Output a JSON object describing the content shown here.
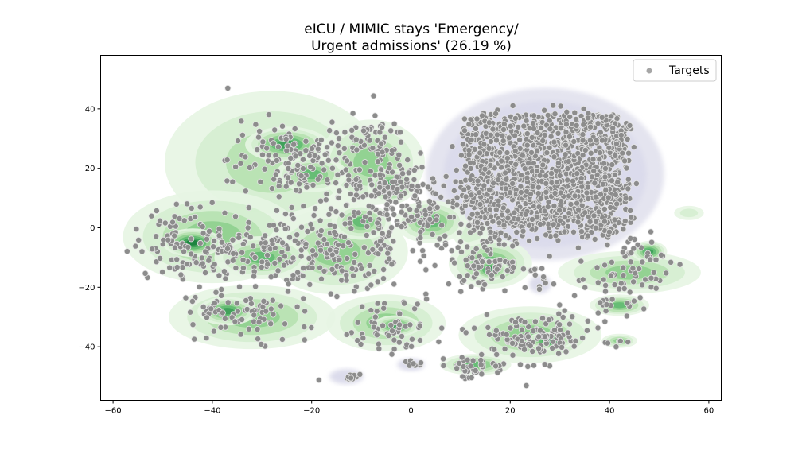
{
  "chart_data": {
    "type": "scatter",
    "title_line1": "eICU / MIMIC stays 'Emergency/",
    "title_line2": "Urgent admissions' (26.19 %)",
    "xlabel": "",
    "ylabel": "",
    "xlim": [
      -62.5,
      62.5
    ],
    "ylim": [
      -58,
      58
    ],
    "x_ticks": [
      -60,
      -40,
      -20,
      0,
      20,
      40,
      60
    ],
    "y_ticks": [
      -40,
      -20,
      0,
      20,
      40
    ],
    "grid": false,
    "legend": {
      "position": "top-right",
      "entries": [
        "Targets"
      ]
    },
    "colors": {
      "points_fill": "#8c8c8c",
      "points_edge": "#e6e6e6",
      "density_palette": [
        "#e7f5e3",
        "#c9eac2",
        "#a2d99b",
        "#73c476",
        "#41ab5d",
        "#238b45",
        "#006d2c"
      ],
      "source_density": [
        "#e4e4ef",
        "#d6d6ea"
      ]
    },
    "series": [
      {
        "name": "Targets",
        "clusters": [
          {
            "cx": 27,
            "cy": 18,
            "sx": 9,
            "sy": 12,
            "n": 1400,
            "shape": "box",
            "hx": 16,
            "hy": 20
          },
          {
            "cx": -25,
            "cy": 22,
            "sx": 6,
            "sy": 7,
            "n": 140
          },
          {
            "cx": -9,
            "cy": 30,
            "sx": 4,
            "sy": 4,
            "n": 60
          },
          {
            "cx": -5,
            "cy": 15,
            "sx": 4,
            "sy": 4,
            "n": 90
          },
          {
            "cx": -44,
            "cy": -5,
            "sx": 6,
            "sy": 6,
            "n": 110
          },
          {
            "cx": -30,
            "cy": -8,
            "sx": 6,
            "sy": 6,
            "n": 100
          },
          {
            "cx": -15,
            "cy": -10,
            "sx": 7,
            "sy": 7,
            "n": 100
          },
          {
            "cx": -8,
            "cy": 2,
            "sx": 7,
            "sy": 7,
            "n": 100
          },
          {
            "cx": 4,
            "cy": 2,
            "sx": 5,
            "sy": 7,
            "n": 80
          },
          {
            "cx": -35,
            "cy": -30,
            "sx": 6,
            "sy": 5,
            "n": 70
          },
          {
            "cx": -5,
            "cy": -32,
            "sx": 6,
            "sy": 5,
            "n": 60
          },
          {
            "cx": 16,
            "cy": -12,
            "sx": 4,
            "sy": 4,
            "n": 90
          },
          {
            "cx": 25,
            "cy": -37,
            "sx": 6,
            "sy": 4,
            "n": 120
          },
          {
            "cx": 13,
            "cy": -47,
            "sx": 4,
            "sy": 2,
            "n": 40
          },
          {
            "cx": 43,
            "cy": -17,
            "sx": 5,
            "sy": 3,
            "n": 40
          },
          {
            "cx": 47,
            "cy": -8,
            "sx": 3,
            "sy": 3,
            "n": 25
          },
          {
            "cx": 42,
            "cy": -26,
            "sx": 4,
            "sy": 2,
            "n": 20
          },
          {
            "cx": -13,
            "cy": -50,
            "sx": 2,
            "sy": 1,
            "n": 14
          },
          {
            "cx": 42,
            "cy": -38,
            "sx": 1.5,
            "sy": 1,
            "n": 5
          },
          {
            "cx": 0,
            "cy": -46,
            "sx": 1.5,
            "sy": 1,
            "n": 8
          },
          {
            "cx": 26,
            "cy": -18,
            "sx": 1,
            "sy": 2,
            "n": 6
          }
        ]
      }
    ],
    "density_regions": [
      {
        "cx": -28,
        "cy": 22,
        "rx": 18,
        "ry": 20,
        "level": 2
      },
      {
        "cx": -25,
        "cy": 28,
        "rx": 7,
        "ry": 5,
        "level": 5
      },
      {
        "cx": -20,
        "cy": 18,
        "rx": 6,
        "ry": 5,
        "level": 4
      },
      {
        "cx": -8,
        "cy": 22,
        "rx": 9,
        "ry": 12,
        "level": 3
      },
      {
        "cx": -4,
        "cy": 14,
        "rx": 4,
        "ry": 5,
        "level": 5
      },
      {
        "cx": -40,
        "cy": -3,
        "rx": 15,
        "ry": 13,
        "level": 3
      },
      {
        "cx": -44,
        "cy": -5,
        "rx": 5,
        "ry": 4,
        "level": 6
      },
      {
        "cx": -30,
        "cy": -10,
        "rx": 8,
        "ry": 6,
        "level": 4
      },
      {
        "cx": -15,
        "cy": -8,
        "rx": 12,
        "ry": 12,
        "level": 3
      },
      {
        "cx": -10,
        "cy": 2,
        "rx": 5,
        "ry": 5,
        "level": 4
      },
      {
        "cx": 4,
        "cy": 2,
        "rx": 6,
        "ry": 6,
        "level": 4
      },
      {
        "cx": -32,
        "cy": -30,
        "rx": 14,
        "ry": 9,
        "level": 3
      },
      {
        "cx": -37,
        "cy": -28,
        "rx": 5,
        "ry": 4,
        "level": 5
      },
      {
        "cx": -5,
        "cy": -32,
        "rx": 10,
        "ry": 8,
        "level": 3
      },
      {
        "cx": -3,
        "cy": -33,
        "rx": 4,
        "ry": 3,
        "level": 5
      },
      {
        "cx": 16,
        "cy": -12,
        "rx": 7,
        "ry": 7,
        "level": 4
      },
      {
        "cx": 16,
        "cy": -14,
        "rx": 3,
        "ry": 3,
        "level": 6
      },
      {
        "cx": 24,
        "cy": -36,
        "rx": 12,
        "ry": 8,
        "level": 3
      },
      {
        "cx": 28,
        "cy": -38,
        "rx": 4,
        "ry": 2.5,
        "level": 6
      },
      {
        "cx": 13,
        "cy": -46,
        "rx": 6,
        "ry": 3,
        "level": 4
      },
      {
        "cx": 44,
        "cy": -15,
        "rx": 12,
        "ry": 6,
        "level": 3
      },
      {
        "cx": 48,
        "cy": -8,
        "rx": 3,
        "ry": 3,
        "level": 5
      },
      {
        "cx": 42,
        "cy": -26,
        "rx": 5,
        "ry": 3,
        "level": 4
      },
      {
        "cx": 42,
        "cy": -38,
        "rx": 3,
        "ry": 2,
        "level": 3
      },
      {
        "cx": 56,
        "cy": 5,
        "rx": 2.5,
        "ry": 2,
        "level": 1
      },
      {
        "cx": 12,
        "cy": -2,
        "rx": 3,
        "ry": 4,
        "level": 1
      }
    ]
  }
}
